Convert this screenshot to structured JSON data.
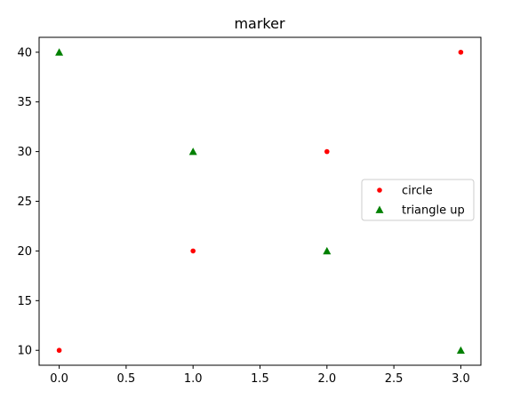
{
  "chart_data": {
    "type": "scatter",
    "title": "marker",
    "xlabel": "",
    "ylabel": "",
    "xlim": [
      -0.15,
      3.15
    ],
    "ylim": [
      8.5,
      41.5
    ],
    "xticks": [
      0.0,
      0.5,
      1.0,
      1.5,
      2.0,
      2.5,
      3.0
    ],
    "xtick_labels": [
      "0.0",
      "0.5",
      "1.0",
      "1.5",
      "2.0",
      "2.5",
      "3.0"
    ],
    "yticks": [
      10,
      15,
      20,
      25,
      30,
      35,
      40
    ],
    "ytick_labels": [
      "10",
      "15",
      "20",
      "25",
      "30",
      "35",
      "40"
    ],
    "grid": false,
    "legend_position": "center-right",
    "series": [
      {
        "name": "circle",
        "marker": "circle",
        "color": "#ff0000",
        "x": [
          0,
          1,
          2,
          3
        ],
        "y": [
          10,
          20,
          30,
          40
        ]
      },
      {
        "name": "triangle up",
        "marker": "triangle-up",
        "color": "#008000",
        "x": [
          0,
          1,
          2,
          3
        ],
        "y": [
          40,
          30,
          20,
          10
        ]
      }
    ]
  }
}
